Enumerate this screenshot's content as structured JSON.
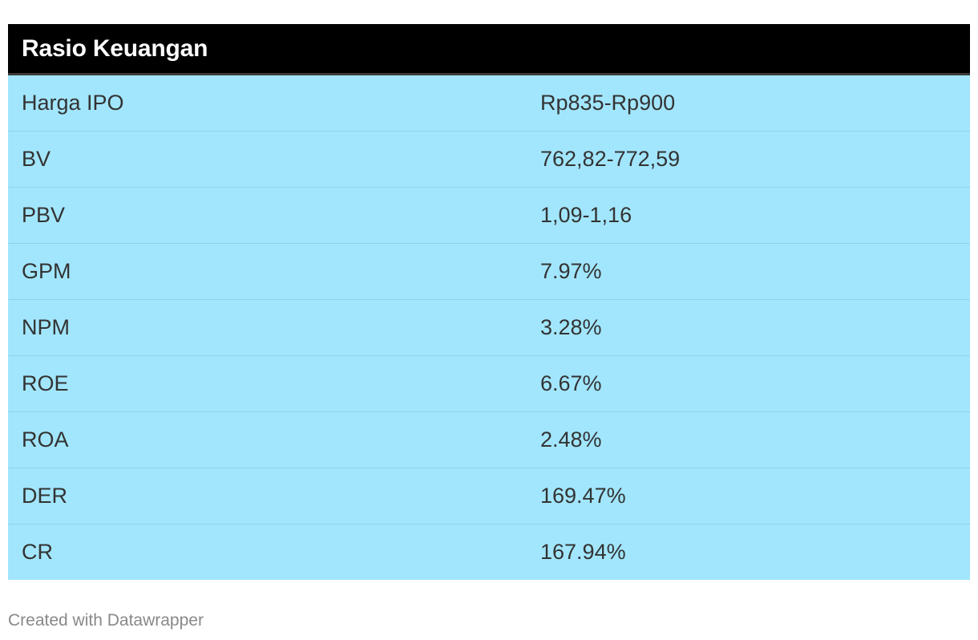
{
  "chart_data": {
    "type": "table",
    "title": "Rasio Keuangan",
    "rows": [
      {
        "label": "Harga IPO",
        "value": "Rp835-Rp900"
      },
      {
        "label": "BV",
        "value": "762,82-772,59"
      },
      {
        "label": "PBV",
        "value": "1,09-1,16"
      },
      {
        "label": "GPM",
        "value": "7.97%"
      },
      {
        "label": "NPM",
        "value": "3.28%"
      },
      {
        "label": "ROE",
        "value": "6.67%"
      },
      {
        "label": "ROA",
        "value": "2.48%"
      },
      {
        "label": "DER",
        "value": "169.47%"
      },
      {
        "label": "CR",
        "value": "167.94%"
      }
    ]
  },
  "footer": {
    "credit": "Created with Datawrapper"
  },
  "colors": {
    "header_bg": "#000000",
    "header_text": "#ffffff",
    "row_bg": "#a2e6fd",
    "row_divider": "#8fd3ea",
    "cell_text": "#333333",
    "footer_text": "#888888"
  }
}
